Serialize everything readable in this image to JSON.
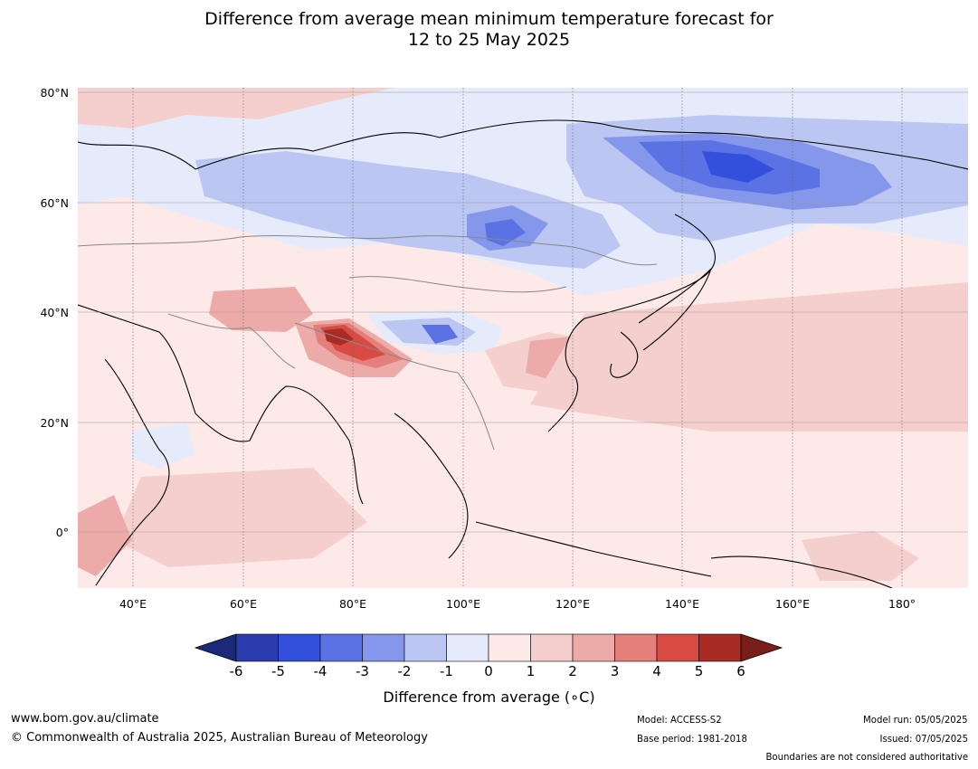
{
  "title": {
    "line1": "Difference from average mean minimum temperature forecast for",
    "line2": "12 to 25 May 2025"
  },
  "map": {
    "lat_labels": [
      "80°N",
      "60°N",
      "40°N",
      "20°N",
      "0°"
    ],
    "lon_labels": [
      "40°E",
      "60°E",
      "80°E",
      "100°E",
      "120°E",
      "140°E",
      "160°E",
      "180°"
    ],
    "background_color": "#fce9e8"
  },
  "colorbar": {
    "ticks": [
      "-6",
      "-5",
      "-4",
      "-3",
      "-2",
      "-1",
      "0",
      "1",
      "2",
      "3",
      "4",
      "5",
      "6"
    ],
    "colors": [
      "#1a2a78",
      "#2b3cae",
      "#3350dd",
      "#5a72e3",
      "#8597ea",
      "#bcc6f2",
      "#e6ebfb",
      "#fce9e8",
      "#f5cfcd",
      "#ecaba8",
      "#e4807b",
      "#d84b43",
      "#a82b24",
      "#7a1e1a"
    ],
    "label": "Difference from average (∘C)"
  },
  "footer": {
    "url": "www.bom.gov.au/climate",
    "copyright": "© Commonwealth of Australia 2025, Australian Bureau of Meteorology",
    "model": "Model: ACCESS-S2",
    "base_period": "Base period: 1981-2018",
    "model_run": "Model run: 05/05/2025",
    "issued": "Issued: 07/05/2025",
    "disclaimer": "Boundaries are not considered authoritative"
  }
}
